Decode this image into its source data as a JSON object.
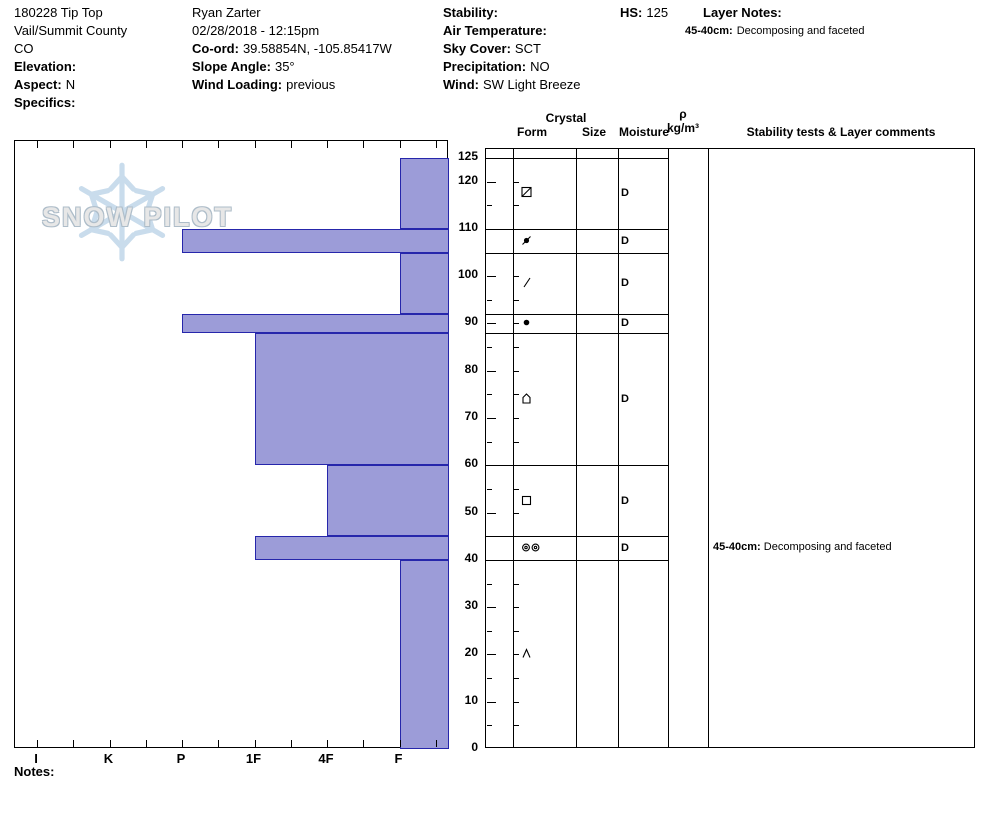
{
  "meta": {
    "pit_name": "180228 Tip Top",
    "range": "Vail/Summit County",
    "state": "CO",
    "elevation_label": "Elevation:",
    "elevation": "",
    "aspect_label": "Aspect:",
    "aspect": "N",
    "specifics_label": "Specifics:",
    "specifics": ""
  },
  "obs": {
    "name": "Ryan Zarter",
    "datetime": "02/28/2018 - 12:15pm",
    "coord_label": "Co-ord:",
    "coord": "39.58854N, -105.85417W",
    "slope_label": "Slope Angle:",
    "slope": "35°",
    "windload_label": "Wind Loading:",
    "windload": "previous"
  },
  "cond": {
    "stability_label": "Stability:",
    "stability": "",
    "airtemp_label": "Air Temperature:",
    "airtemp": "",
    "sky_label": "Sky Cover:",
    "sky": "SCT",
    "precip_label": "Precipitation:",
    "precip": "NO",
    "wind_label": "Wind:",
    "wind": "SW Light Breeze"
  },
  "hs": {
    "label": "HS:",
    "value": "125"
  },
  "layer_notes": {
    "label": "Layer Notes:",
    "items": [
      {
        "range": "45-40cm:",
        "text": "Decomposing and faceted"
      }
    ]
  },
  "watermark": {
    "text": "SNOW PILOT"
  },
  "theader": {
    "crystal": "Crystal",
    "form": "Form",
    "size": "Size",
    "moisture": "Moisture",
    "rho": "ρ",
    "rho_unit": "kg/m³",
    "comments": "Stability tests & Layer comments"
  },
  "notes_label": "Notes:",
  "chart_data": {
    "type": "bar",
    "subtype": "snow-profile-hardness",
    "title": "Snow pit hardness profile",
    "hardness_axis": [
      "I",
      "K",
      "P",
      "1F",
      "4F",
      "F"
    ],
    "depth_axis_cm": [
      125,
      120,
      110,
      100,
      90,
      80,
      70,
      60,
      50,
      40,
      30,
      20,
      10,
      0
    ],
    "total_depth_cm": 125,
    "bar_color": "#9c9cd8",
    "bar_border_color": "#2626ab",
    "layers": [
      {
        "top_cm": 125,
        "bottom_cm": 110,
        "hardness": "F",
        "form": "square-slash",
        "size": "",
        "moisture": "D"
      },
      {
        "top_cm": 110,
        "bottom_cm": 105,
        "hardness": "P",
        "form": "circle-slash",
        "size": "",
        "moisture": "D"
      },
      {
        "top_cm": 105,
        "bottom_cm": 92,
        "hardness": "F",
        "form": "slash",
        "size": "",
        "moisture": "D"
      },
      {
        "top_cm": 92,
        "bottom_cm": 88,
        "hardness": "P",
        "form": "filled-circle",
        "size": "",
        "moisture": "D"
      },
      {
        "top_cm": 88,
        "bottom_cm": 60,
        "hardness": "1F",
        "form": "house",
        "size": "",
        "moisture": "D"
      },
      {
        "top_cm": 60,
        "bottom_cm": 45,
        "hardness": "4F",
        "form": "square",
        "size": "",
        "moisture": "D"
      },
      {
        "top_cm": 45,
        "bottom_cm": 40,
        "hardness": "1F",
        "form": "double-circle",
        "size": "",
        "moisture": "D"
      },
      {
        "top_cm": 40,
        "bottom_cm": 0,
        "hardness": "F",
        "form": "caret",
        "size": "",
        "moisture": ""
      }
    ],
    "layer_comments": [
      {
        "at_cm": 42.5,
        "bold": "45-40cm:",
        "text": "Decomposing and faceted"
      }
    ]
  }
}
